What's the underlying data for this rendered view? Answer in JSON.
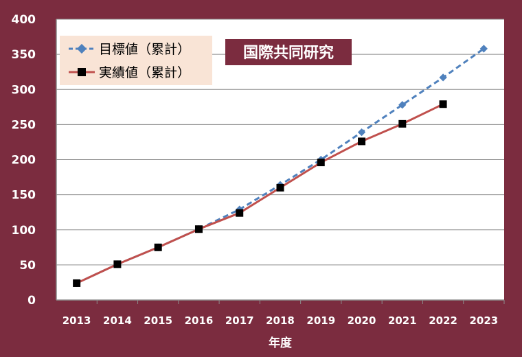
{
  "chart_data": {
    "type": "line",
    "title": "",
    "xlabel": "年度",
    "ylabel": "",
    "ylim": [
      0,
      400
    ],
    "yticks": [
      "0",
      "50",
      "100",
      "150",
      "200",
      "250",
      "300",
      "350",
      "400"
    ],
    "categories": [
      "2013",
      "2014",
      "2015",
      "2016",
      "2017",
      "2018",
      "2019",
      "2020",
      "2021",
      "2022",
      "2023"
    ],
    "grid": true,
    "legend_position": "top-left",
    "annotation": "国際共同研究",
    "series": [
      {
        "name": "目標値（累計）",
        "style": "dashed",
        "marker": "diamond",
        "color": "#4f81bd",
        "values": [
          24,
          51,
          75,
          101,
          129,
          164,
          200,
          239,
          278,
          317,
          358
        ]
      },
      {
        "name": "実績値（累計）",
        "style": "solid",
        "marker": "square",
        "color": "#c0504d",
        "values": [
          24,
          51,
          75,
          101,
          124,
          160,
          196,
          226,
          251,
          279,
          null
        ]
      }
    ],
    "colors": {
      "frame_background": "#7b2c3f",
      "plot_background": "#ffffff",
      "legend_background": "#f9e4d6",
      "marker_fill": "#000000"
    }
  }
}
